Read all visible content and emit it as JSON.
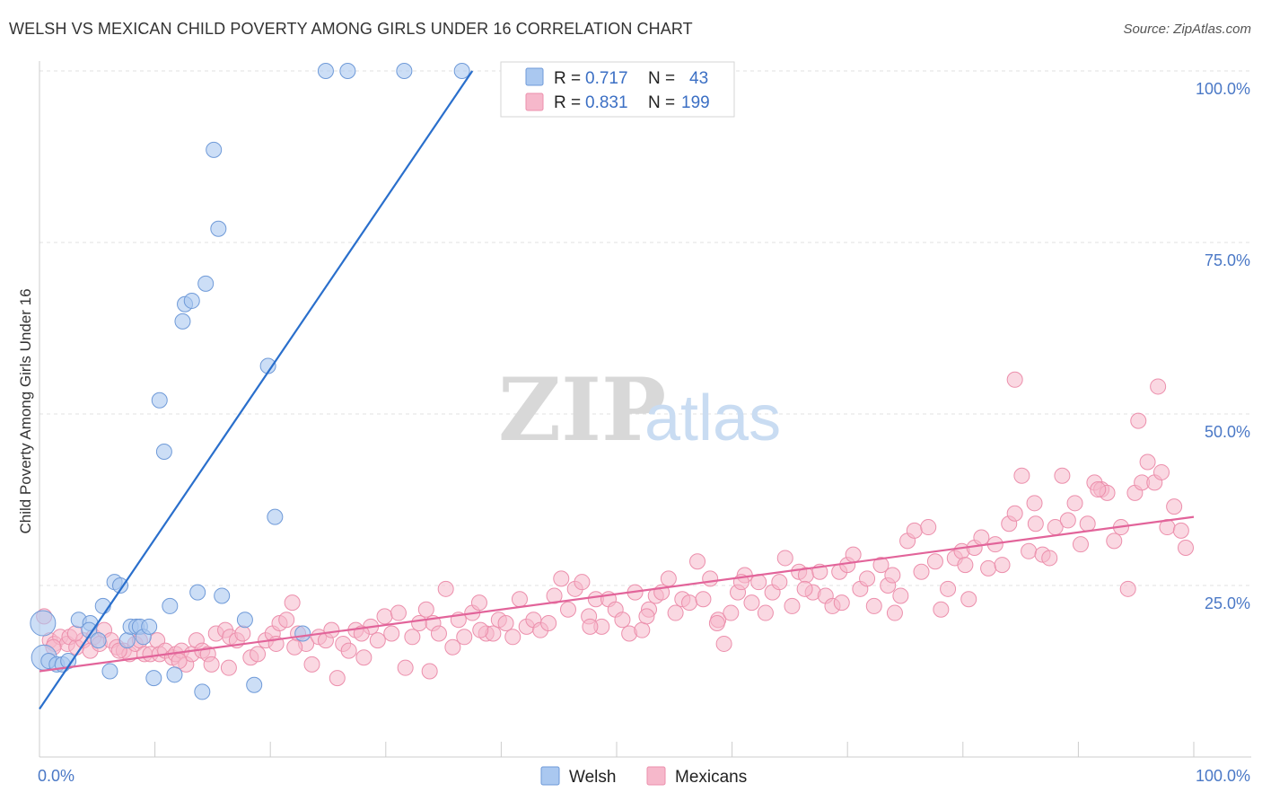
{
  "title": "WELSH VS MEXICAN CHILD POVERTY AMONG GIRLS UNDER 16 CORRELATION CHART",
  "source": "Source: ZipAtlas.com",
  "watermark": {
    "zip": "ZIP",
    "atlas": "atlas"
  },
  "colors": {
    "welsh_fill": "#aac8f0",
    "welsh_stroke": "#6f9ad8",
    "welsh_line": "#2a6fcc",
    "mex_fill": "#f6b8cb",
    "mex_stroke": "#ec8fac",
    "mex_line": "#e2649a",
    "grid": "#e2e2e2",
    "axis": "#cccccc",
    "tick_label": "#4a78c6"
  },
  "legend": {
    "welsh": {
      "r_label": "R = ",
      "r_value": "0.717",
      "n_label": "N = ",
      "n_value": "43"
    },
    "mex": {
      "r_label": "R = ",
      "r_value": "0.831",
      "n_label": "N = ",
      "n_value": "199"
    }
  },
  "bottom_legend": {
    "welsh": "Welsh",
    "mex": "Mexicans"
  },
  "chart_data": {
    "type": "scatter",
    "xlabel": "",
    "ylabel": "Child Poverty Among Girls Under 16",
    "xlim": [
      0,
      100
    ],
    "ylim": [
      0,
      105
    ],
    "x_tick_labels": {
      "left": "0.0%",
      "right": "100.0%"
    },
    "y_ticks": [
      {
        "value": 25,
        "label": "25.0%"
      },
      {
        "value": 50,
        "label": "50.0%"
      },
      {
        "value": 75,
        "label": "75.0%"
      },
      {
        "value": 100,
        "label": "100.0%"
      }
    ],
    "grid": true,
    "legend_position": "top-center",
    "series": [
      {
        "name": "Welsh",
        "trend": {
          "x": [
            0,
            37.5
          ],
          "y": [
            7,
            100
          ]
        },
        "points": [
          [
            0.3,
            19.5
          ],
          [
            0.4,
            14.5
          ],
          [
            0.8,
            14
          ],
          [
            1.5,
            13.5
          ],
          [
            2,
            13.5
          ],
          [
            2.5,
            14
          ],
          [
            3.4,
            20
          ],
          [
            4.4,
            19.5
          ],
          [
            4.3,
            18.5
          ],
          [
            5.1,
            17
          ],
          [
            5.5,
            22
          ],
          [
            6.1,
            12.5
          ],
          [
            6.5,
            25.5
          ],
          [
            7,
            25
          ],
          [
            7.6,
            17
          ],
          [
            7.9,
            19
          ],
          [
            8.4,
            19
          ],
          [
            8.7,
            19
          ],
          [
            9,
            17.5
          ],
          [
            9.5,
            19
          ],
          [
            9.9,
            11.5
          ],
          [
            10.4,
            52
          ],
          [
            10.8,
            44.5
          ],
          [
            11.3,
            22
          ],
          [
            11.7,
            12
          ],
          [
            12.4,
            63.5
          ],
          [
            12.6,
            66
          ],
          [
            13.2,
            66.5
          ],
          [
            13.7,
            24
          ],
          [
            14.1,
            9.5
          ],
          [
            14.4,
            69
          ],
          [
            15.1,
            88.5
          ],
          [
            15.5,
            77
          ],
          [
            15.8,
            23.5
          ],
          [
            17.8,
            20
          ],
          [
            18.6,
            10.5
          ],
          [
            19.8,
            57
          ],
          [
            20.4,
            35
          ],
          [
            22.8,
            18
          ],
          [
            24.8,
            100
          ],
          [
            26.7,
            100
          ],
          [
            31.6,
            100
          ],
          [
            36.6,
            100
          ]
        ]
      },
      {
        "name": "Mexicans",
        "trend": {
          "x": [
            0,
            100
          ],
          "y": [
            12.5,
            35
          ]
        },
        "points": [
          [
            0.4,
            20.5
          ],
          [
            0.9,
            17
          ],
          [
            1.3,
            16.5
          ],
          [
            1.8,
            17.5
          ],
          [
            2.4,
            16.5
          ],
          [
            2.6,
            17.5
          ],
          [
            3.2,
            16
          ],
          [
            3.8,
            17
          ],
          [
            4.4,
            15.5
          ],
          [
            4.7,
            17.5
          ],
          [
            5.2,
            16.5
          ],
          [
            5.6,
            18.5
          ],
          [
            6.2,
            17
          ],
          [
            6.7,
            16
          ],
          [
            7.3,
            15.5
          ],
          [
            7.8,
            15
          ],
          [
            8.3,
            16.5
          ],
          [
            8.7,
            17
          ],
          [
            9.1,
            15
          ],
          [
            9.6,
            15
          ],
          [
            10.2,
            17
          ],
          [
            10.4,
            15
          ],
          [
            10.9,
            15.5
          ],
          [
            11.5,
            14.5
          ],
          [
            11.8,
            15
          ],
          [
            12.3,
            15.5
          ],
          [
            12.7,
            13.5
          ],
          [
            13.2,
            15
          ],
          [
            13.6,
            17
          ],
          [
            14.1,
            15.5
          ],
          [
            14.6,
            15
          ],
          [
            14.9,
            13.5
          ],
          [
            15.3,
            18
          ],
          [
            16.1,
            18.5
          ],
          [
            16.5,
            17.5
          ],
          [
            17.1,
            17
          ],
          [
            17.6,
            18
          ],
          [
            18.3,
            14.5
          ],
          [
            18.9,
            15
          ],
          [
            19.6,
            17
          ],
          [
            20.2,
            18
          ],
          [
            20.8,
            19.5
          ],
          [
            21.4,
            20
          ],
          [
            21.9,
            22.5
          ],
          [
            22.4,
            18
          ],
          [
            23.1,
            16.5
          ],
          [
            23.6,
            13.5
          ],
          [
            24.2,
            17.5
          ],
          [
            24.8,
            17
          ],
          [
            25.3,
            18.5
          ],
          [
            25.8,
            11.5
          ],
          [
            26.3,
            16.5
          ],
          [
            26.8,
            15.5
          ],
          [
            27.4,
            18.5
          ],
          [
            28.1,
            14.5
          ],
          [
            28.7,
            19
          ],
          [
            29.3,
            17
          ],
          [
            29.9,
            20.5
          ],
          [
            30.5,
            18
          ],
          [
            31.1,
            21
          ],
          [
            31.7,
            13
          ],
          [
            32.3,
            17.5
          ],
          [
            32.9,
            19.5
          ],
          [
            33.5,
            21.5
          ],
          [
            34.1,
            19.5
          ],
          [
            34.6,
            18
          ],
          [
            35.2,
            24.5
          ],
          [
            35.8,
            16
          ],
          [
            36.3,
            20
          ],
          [
            36.8,
            17.5
          ],
          [
            37.5,
            21
          ],
          [
            38.1,
            22.5
          ],
          [
            38.7,
            18
          ],
          [
            39.3,
            18
          ],
          [
            39.8,
            20
          ],
          [
            40.4,
            19.5
          ],
          [
            41,
            17.5
          ],
          [
            41.6,
            23
          ],
          [
            42.2,
            19
          ],
          [
            42.8,
            20
          ],
          [
            43.4,
            18.5
          ],
          [
            44.1,
            19.5
          ],
          [
            44.6,
            23.5
          ],
          [
            45.2,
            26
          ],
          [
            45.8,
            21.5
          ],
          [
            46.4,
            24.5
          ],
          [
            47,
            25.5
          ],
          [
            47.6,
            20.5
          ],
          [
            48.2,
            23
          ],
          [
            48.7,
            19
          ],
          [
            49.3,
            23
          ],
          [
            49.9,
            21.5
          ],
          [
            50.5,
            20
          ],
          [
            51.1,
            18
          ],
          [
            51.6,
            24
          ],
          [
            52.2,
            18.5
          ],
          [
            52.8,
            21.5
          ],
          [
            53.4,
            23.5
          ],
          [
            53.9,
            24
          ],
          [
            54.5,
            26
          ],
          [
            55.1,
            21
          ],
          [
            55.7,
            23
          ],
          [
            56.3,
            22.5
          ],
          [
            57,
            28.5
          ],
          [
            57.5,
            23
          ],
          [
            58.1,
            26
          ],
          [
            58.8,
            20
          ],
          [
            59.3,
            16.5
          ],
          [
            59.9,
            21
          ],
          [
            60.5,
            24
          ],
          [
            61.1,
            26.5
          ],
          [
            61.7,
            22.5
          ],
          [
            62.3,
            25.5
          ],
          [
            62.9,
            21
          ],
          [
            63.5,
            24
          ],
          [
            64.1,
            25.5
          ],
          [
            64.6,
            29
          ],
          [
            65.2,
            22
          ],
          [
            65.8,
            27
          ],
          [
            66.4,
            26.5
          ],
          [
            67,
            24
          ],
          [
            67.6,
            27
          ],
          [
            68.1,
            23.5
          ],
          [
            68.7,
            22
          ],
          [
            69.3,
            27
          ],
          [
            70,
            28
          ],
          [
            70.5,
            29.5
          ],
          [
            71.1,
            24.5
          ],
          [
            71.7,
            26
          ],
          [
            72.3,
            22
          ],
          [
            72.9,
            28
          ],
          [
            73.5,
            25
          ],
          [
            74.1,
            21
          ],
          [
            74.6,
            23.5
          ],
          [
            75.2,
            31.5
          ],
          [
            75.8,
            33
          ],
          [
            76.4,
            27
          ],
          [
            77,
            33.5
          ],
          [
            77.6,
            28.5
          ],
          [
            78.1,
            21.5
          ],
          [
            78.7,
            24.5
          ],
          [
            79.3,
            29
          ],
          [
            79.9,
            30
          ],
          [
            80.5,
            23
          ],
          [
            81,
            30.5
          ],
          [
            81.6,
            32
          ],
          [
            82.2,
            27.5
          ],
          [
            82.8,
            31
          ],
          [
            83.4,
            28
          ],
          [
            84,
            34
          ],
          [
            84.5,
            35.5
          ],
          [
            85.1,
            41
          ],
          [
            85.7,
            30
          ],
          [
            86.3,
            34
          ],
          [
            86.9,
            29.5
          ],
          [
            87.5,
            29
          ],
          [
            88,
            33.5
          ],
          [
            88.6,
            41
          ],
          [
            89.1,
            34.5
          ],
          [
            89.7,
            37
          ],
          [
            90.2,
            31
          ],
          [
            90.8,
            34
          ],
          [
            91.4,
            40
          ],
          [
            92,
            39
          ],
          [
            92.5,
            38.5
          ],
          [
            93.1,
            31.5
          ],
          [
            93.7,
            33.5
          ],
          [
            94.3,
            24.5
          ],
          [
            94.9,
            38.5
          ],
          [
            95.5,
            40
          ],
          [
            96,
            43
          ],
          [
            96.6,
            40
          ],
          [
            97.2,
            41.5
          ],
          [
            97.7,
            33.5
          ],
          [
            98.3,
            36.5
          ],
          [
            98.9,
            33
          ],
          [
            99.3,
            30.5
          ],
          [
            95.2,
            49
          ],
          [
            96.9,
            54
          ],
          [
            84.5,
            55
          ],
          [
            69.5,
            22.5
          ],
          [
            66.3,
            24.5
          ],
          [
            58.7,
            19.5
          ],
          [
            47.7,
            19
          ],
          [
            33.8,
            12.5
          ],
          [
            22.1,
            16
          ],
          [
            16.4,
            13
          ],
          [
            12.1,
            14
          ],
          [
            6.9,
            15.5
          ],
          [
            3.1,
            18
          ],
          [
            1.2,
            16
          ],
          [
            20.5,
            16.5
          ],
          [
            27.9,
            18
          ],
          [
            38.2,
            18.5
          ],
          [
            52.6,
            20.5
          ],
          [
            60.8,
            25.5
          ],
          [
            73.9,
            26.5
          ],
          [
            86.2,
            37
          ],
          [
            91.7,
            39
          ],
          [
            80.2,
            28
          ]
        ]
      }
    ]
  }
}
